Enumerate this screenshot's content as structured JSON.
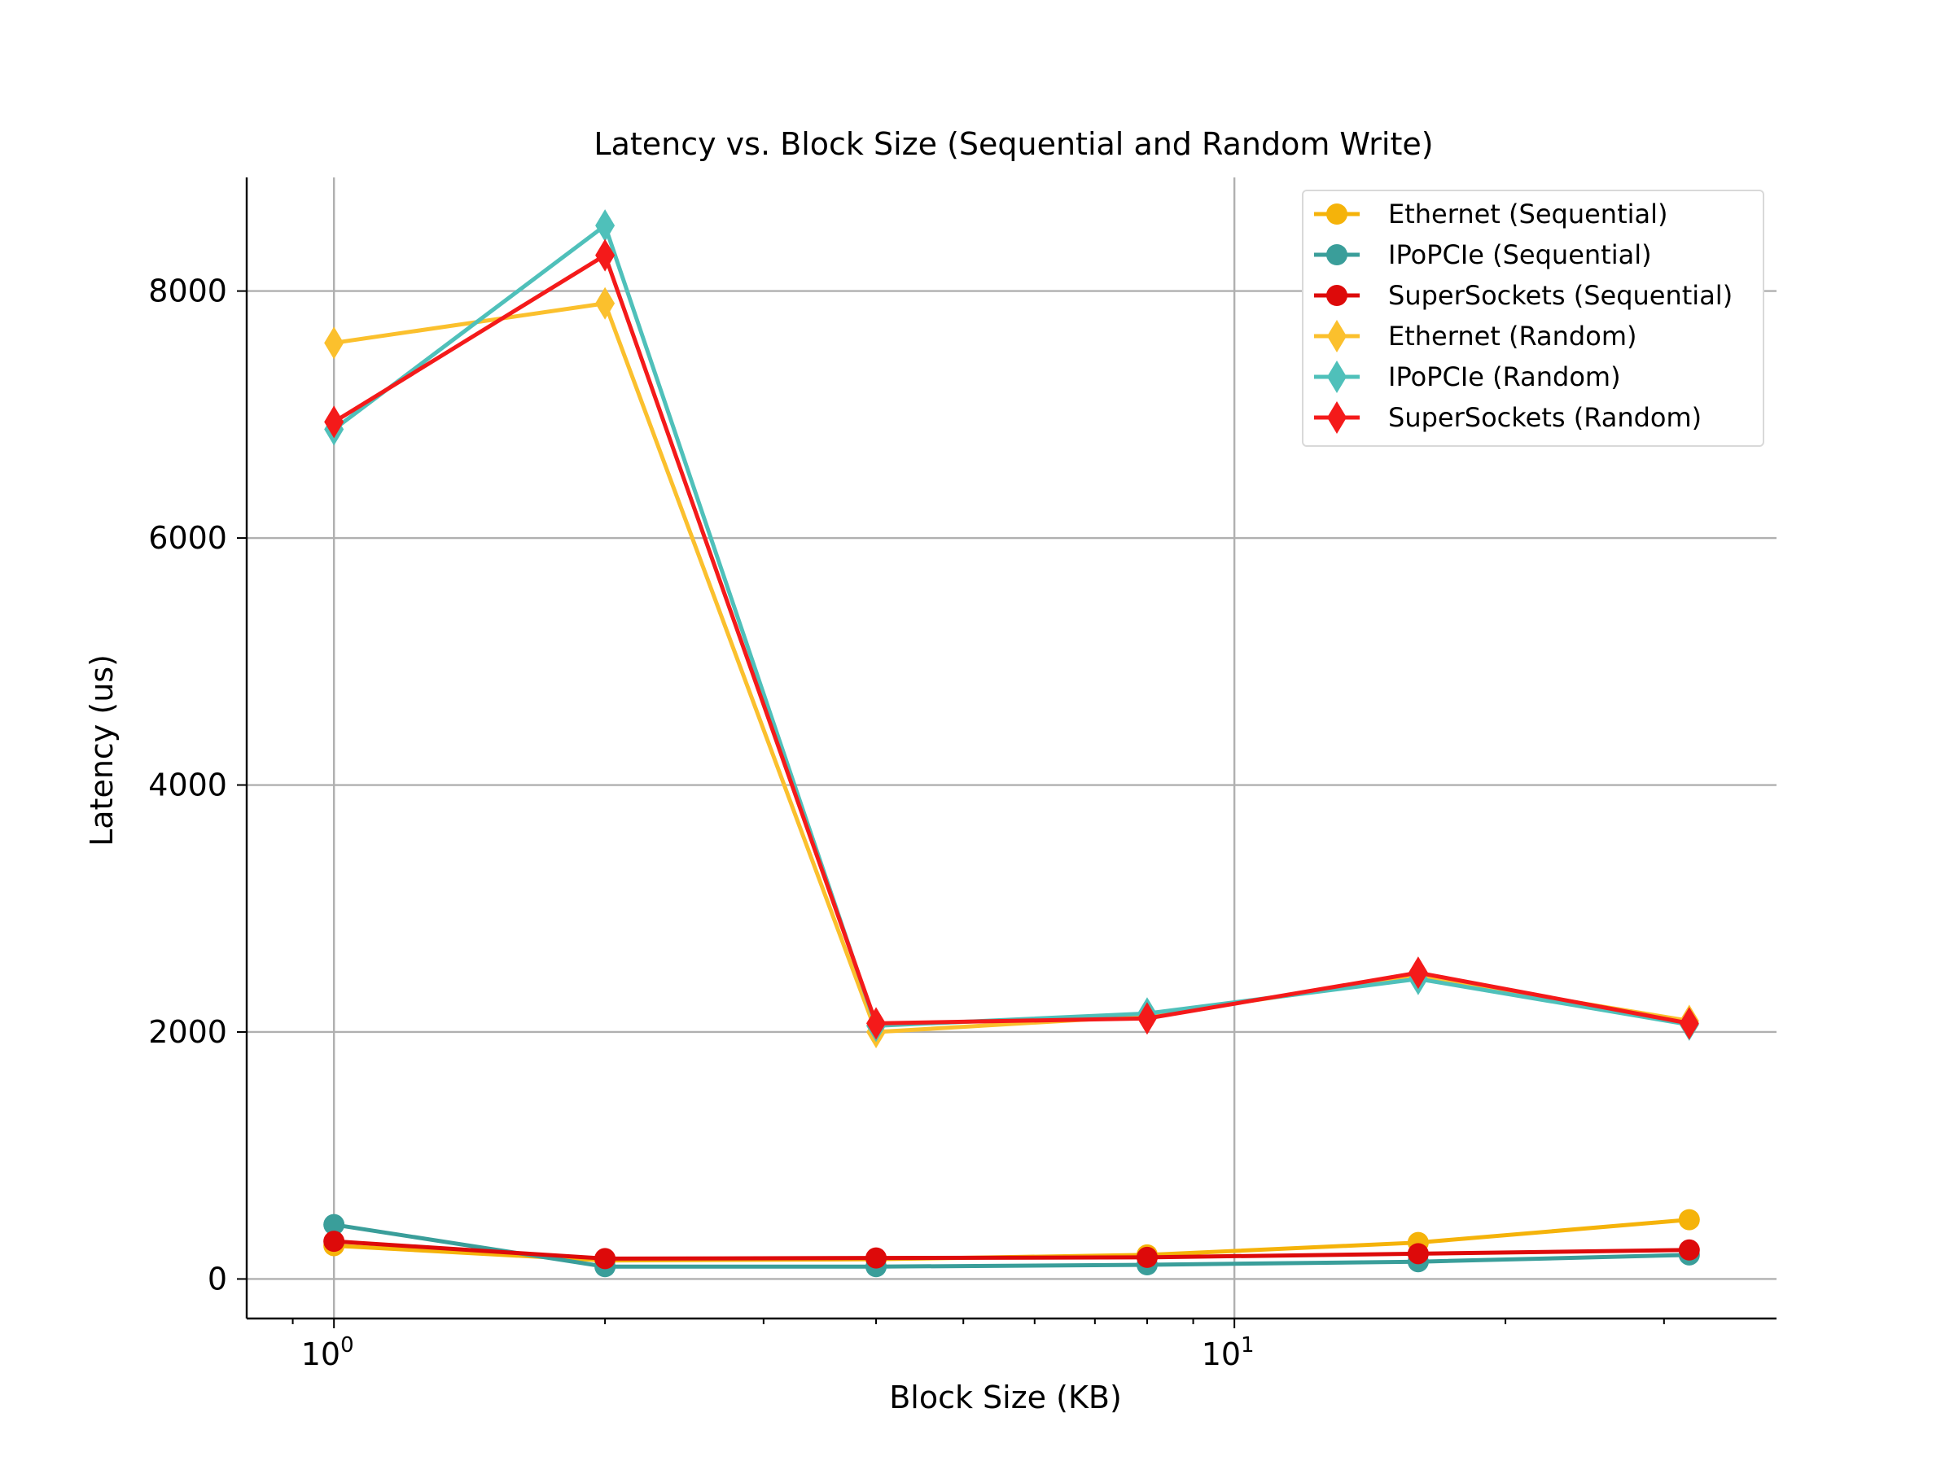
{
  "chart_data": {
    "type": "line",
    "title": "Latency vs. Block Size (Sequential and Random Write)",
    "xlabel": "Block Size (KB)",
    "ylabel": "Latency (us)",
    "x_scale": "log",
    "x": [
      1,
      2,
      4,
      8,
      16,
      32
    ],
    "xlim": [
      0.8,
      40
    ],
    "ylim": [
      -320,
      8920
    ],
    "x_ticks": [
      {
        "value": 1,
        "label_base": "10",
        "label_exp": "0"
      },
      {
        "value": 10,
        "label_base": "10",
        "label_exp": "1"
      }
    ],
    "y_ticks": [
      0,
      2000,
      4000,
      6000,
      8000
    ],
    "y_tick_labels": [
      "0",
      "2000",
      "4000",
      "6000",
      "8000"
    ],
    "grid": true,
    "legend_position": "top-right",
    "series": [
      {
        "name": "Ethernet (Sequential)",
        "color": "#f5b30a",
        "marker": "circle",
        "values": [
          270,
          150,
          160,
          195,
          295,
          480
        ]
      },
      {
        "name": "IPoPCIe (Sequential)",
        "color": "#3a9e9a",
        "marker": "circle",
        "values": [
          440,
          100,
          100,
          115,
          140,
          195
        ]
      },
      {
        "name": "SuperSockets (Sequential)",
        "color": "#dd0a0a",
        "marker": "circle",
        "values": [
          305,
          165,
          170,
          175,
          205,
          235
        ]
      },
      {
        "name": "Ethernet (Random)",
        "color": "#fbc02d",
        "marker": "diamond",
        "values": [
          7580,
          7900,
          2000,
          2130,
          2450,
          2090
        ]
      },
      {
        "name": "IPoPCIe (Random)",
        "color": "#4fc0ba",
        "marker": "diamond",
        "values": [
          6880,
          8530,
          2050,
          2150,
          2430,
          2060
        ]
      },
      {
        "name": "SuperSockets (Random)",
        "color": "#f41a1a",
        "marker": "diamond",
        "values": [
          6940,
          8290,
          2070,
          2110,
          2480,
          2070
        ]
      }
    ]
  }
}
